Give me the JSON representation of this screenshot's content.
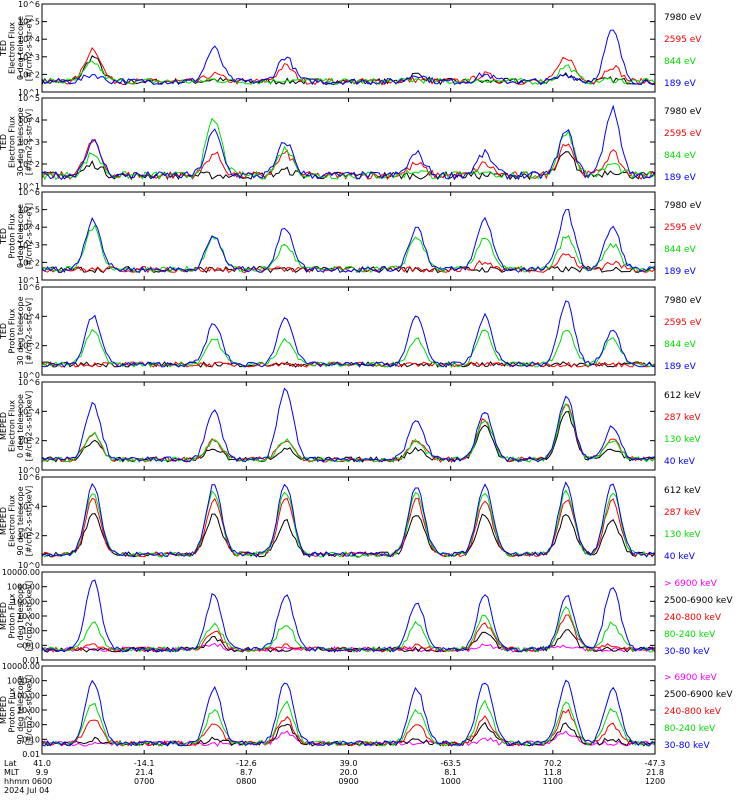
{
  "panels": [
    {
      "ylabel": [
        "TED",
        "Electron Flux",
        "0 deg telescope",
        "[#/cm2-s-str-eV]"
      ],
      "ticks": [
        "10^1",
        "10^2",
        "10^3",
        "10^4",
        "10^5",
        "10^6"
      ],
      "legend": [
        {
          "text": "7980 eV",
          "color": "#000000"
        },
        {
          "text": "2595 eV",
          "color": "#ff0000"
        },
        {
          "text": "844 eV",
          "color": "#00dd00"
        },
        {
          "text": "189 eV",
          "color": "#0000ff"
        }
      ],
      "yscale": "log"
    },
    {
      "ylabel": [
        "TED",
        "Electron Flux",
        "30 deg telescope",
        "[#/cm2-s-str-eV]"
      ],
      "ticks": [
        "10^1",
        "10^2",
        "10^3",
        "10^4",
        "10^5"
      ],
      "legend": [
        {
          "text": "7980 eV",
          "color": "#000000"
        },
        {
          "text": "2595 eV",
          "color": "#ff0000"
        },
        {
          "text": "844 eV",
          "color": "#00dd00"
        },
        {
          "text": "189 eV",
          "color": "#0000ff"
        }
      ],
      "yscale": "log"
    },
    {
      "ylabel": [
        "TED",
        "Proton Flux",
        "0 deg telescope",
        "[#/cm2-s-str-eV]"
      ],
      "ticks": [
        "10^1",
        "10^2",
        "10^3",
        "10^4",
        "10^5",
        "10^6"
      ],
      "legend": [
        {
          "text": "7980 eV",
          "color": "#000000"
        },
        {
          "text": "2595 eV",
          "color": "#ff0000"
        },
        {
          "text": "844 eV",
          "color": "#00dd00"
        },
        {
          "text": "189 eV",
          "color": "#0000ff"
        }
      ],
      "yscale": "log"
    },
    {
      "ylabel": [
        "TED",
        "Proton Flux",
        "30 deg telescope",
        "[#/cm2-s-str-eV]"
      ],
      "ticks": [
        "10^0",
        "10^2",
        "10^4",
        "10^6"
      ],
      "legend": [
        {
          "text": "7980 eV",
          "color": "#000000"
        },
        {
          "text": "2595 eV",
          "color": "#ff0000"
        },
        {
          "text": "844 eV",
          "color": "#00dd00"
        },
        {
          "text": "189 eV",
          "color": "#0000ff"
        }
      ],
      "yscale": "log"
    },
    {
      "ylabel": [
        "MEPED",
        "Electron Flux",
        "0 deg telescope",
        "[#/cm2-s-str-keV]"
      ],
      "ticks": [
        "10^0",
        "10^2",
        "10^4",
        "10^6"
      ],
      "legend": [
        {
          "text": "612 keV",
          "color": "#000000"
        },
        {
          "text": "287 keV",
          "color": "#ff0000"
        },
        {
          "text": "130 keV",
          "color": "#00dd00"
        },
        {
          "text": "40 keV",
          "color": "#0000ff"
        }
      ],
      "yscale": "log"
    },
    {
      "ylabel": [
        "MEPED",
        "Electron Flux",
        "90 deg telescope",
        "[#/cm2-s-str-keV]"
      ],
      "ticks": [
        "10^0",
        "10^2",
        "10^4",
        "10^6"
      ],
      "legend": [
        {
          "text": "612 keV",
          "color": "#000000"
        },
        {
          "text": "287 keV",
          "color": "#ff0000"
        },
        {
          "text": "130 keV",
          "color": "#00dd00"
        },
        {
          "text": "40 keV",
          "color": "#0000ff"
        }
      ],
      "yscale": "log"
    },
    {
      "ylabel": [
        "MEPED",
        "Proton Flux",
        "0 deg telescope",
        "[#/cm2-s-str-keV]"
      ],
      "ticks": [
        "0.01",
        "0.10",
        "1.00",
        "10.00",
        "100.00",
        "1000.00",
        "10000.00"
      ],
      "legend": [
        {
          "text": "> 6900 keV",
          "color": "#ff00ff"
        },
        {
          "text": "2500-6900 keV",
          "color": "#000000"
        },
        {
          "text": "240-800 keV",
          "color": "#ff0000"
        },
        {
          "text": "80-240 keV",
          "color": "#00dd00"
        },
        {
          "text": "30-80 keV",
          "color": "#0000ff"
        }
      ],
      "yscale": "log"
    },
    {
      "ylabel": [
        "MEPED",
        "Proton Flux",
        "90 deg telescope",
        "[#/cm2-s-str-keV]"
      ],
      "ticks": [
        "0.01",
        "0.10",
        "1.00",
        "10.00",
        "100.00",
        "1000.00",
        "10000.00"
      ],
      "legend": [
        {
          "text": "> 6900 keV",
          "color": "#ff00ff"
        },
        {
          "text": "2500-6900 keV",
          "color": "#000000"
        },
        {
          "text": "240-800 keV",
          "color": "#ff0000"
        },
        {
          "text": "80-240 keV",
          "color": "#00dd00"
        },
        {
          "text": "30-80 keV",
          "color": "#0000ff"
        }
      ],
      "yscale": "log"
    }
  ],
  "xaxis": {
    "row_labels": [
      "Lat",
      "MLT",
      "hhmm",
      "2024 Jul 04"
    ],
    "lat": [
      "41.0",
      "-14.1",
      "-12.6",
      "39.0",
      "-63.5",
      "70.2",
      "-47.3"
    ],
    "mlt": [
      "9.9",
      "21.4",
      "8.7",
      "20.0",
      "8.1",
      "11.8",
      "21.8"
    ],
    "hhmm": [
      "0600",
      "0700",
      "0800",
      "0900",
      "1000",
      "1100",
      "1200"
    ]
  },
  "chart_data": {
    "type": "line",
    "title": "",
    "x": [
      "0600",
      "0700",
      "0800",
      "0900",
      "1000",
      "1100",
      "1200"
    ],
    "xlabel": "hhmm",
    "date": "2024 Jul 04",
    "passes_hhmm": [
      "0630",
      "0741",
      "0823",
      "0940",
      "1020",
      "1108",
      "1135"
    ],
    "grid": false,
    "legend_position": "right",
    "panels": [
      {
        "name": "TED Electron Flux 0 deg telescope",
        "ylim": [
          "10^1",
          "10^6"
        ],
        "series": [
          {
            "name": "7980 eV",
            "peaks": [
              1000,
              50,
              30,
              100,
              20,
              100,
              50
            ]
          },
          {
            "name": "2595 eV",
            "peaks": [
              3000,
              100,
              300,
              50,
              100,
              1000,
              300
            ]
          },
          {
            "name": "844 eV",
            "peaks": [
              500,
              50,
              50,
              50,
              50,
              300,
              50
            ]
          },
          {
            "name": "189 eV",
            "peaks": [
              100,
              3000,
              1000,
              100,
              100,
              100,
              30000
            ]
          }
        ]
      },
      {
        "name": "TED Electron Flux 30 deg telescope",
        "ylim": [
          "10^1",
          "10^5"
        ],
        "series": [
          {
            "name": "7980 eV",
            "peaks": [
              100,
              20,
              50,
              20,
              10,
              300,
              50
            ]
          },
          {
            "name": "2595 eV",
            "peaks": [
              1000,
              300,
              300,
              100,
              100,
              1000,
              300
            ]
          },
          {
            "name": "844 eV",
            "peaks": [
              300,
              10000,
              500,
              50,
              50,
              3000,
              100
            ]
          },
          {
            "name": "189 eV",
            "peaks": [
              1000,
              3000,
              1000,
              300,
              300,
              3000,
              30000
            ]
          }
        ]
      },
      {
        "name": "TED Proton Flux 0 deg telescope",
        "ylim": [
          "10^1",
          "10^6"
        ],
        "series": [
          {
            "name": "7980 eV",
            "peaks": [
              30,
              30,
              30,
              30,
              30,
              30,
              30
            ]
          },
          {
            "name": "2595 eV",
            "peaks": [
              30,
              30,
              30,
              30,
              100,
              300,
              100
            ]
          },
          {
            "name": "844 eV",
            "peaks": [
              10000,
              3000,
              1000,
              3000,
              3000,
              3000,
              1000
            ]
          },
          {
            "name": "189 eV",
            "peaks": [
              30000,
              3000,
              10000,
              10000,
              30000,
              100000,
              10000
            ]
          }
        ]
      },
      {
        "name": "TED Proton Flux 30 deg telescope",
        "ylim": [
          "10^0",
          "10^6"
        ],
        "series": [
          {
            "name": "7980 eV",
            "peaks": [
              1,
              1,
              1,
              1,
              1,
              1,
              1
            ]
          },
          {
            "name": "2595 eV",
            "peaks": [
              3,
              3,
              3,
              3,
              3,
              3,
              3
            ]
          },
          {
            "name": "844 eV",
            "peaks": [
              1000,
              300,
              300,
              300,
              1000,
              1000,
              300
            ]
          },
          {
            "name": "189 eV",
            "peaks": [
              10000,
              3000,
              10000,
              10000,
              10000,
              100000,
              1000
            ]
          }
        ]
      },
      {
        "name": "MEPED Electron Flux 0 deg telescope",
        "ylim": [
          "10^0",
          "10^6"
        ],
        "series": [
          {
            "name": "612 keV",
            "peaks": [
              100,
              30,
              30,
              30,
              1000,
              10000,
              30
            ]
          },
          {
            "name": "287 keV",
            "peaks": [
              300,
              100,
              100,
              100,
              3000,
              30000,
              100
            ]
          },
          {
            "name": "130 keV",
            "peaks": [
              300,
              100,
              100,
              100,
              3000,
              30000,
              100
            ]
          },
          {
            "name": "40 keV",
            "peaks": [
              30000,
              10000,
              300000,
              3000,
              10000,
              100000,
              1000
            ]
          }
        ]
      },
      {
        "name": "MEPED Electron Flux 90 deg telescope",
        "ylim": [
          "10^0",
          "10^6"
        ],
        "series": [
          {
            "name": "612 keV",
            "peaks": [
              3000,
              3000,
              1000,
              3000,
              3000,
              3000,
              1000
            ]
          },
          {
            "name": "287 keV",
            "peaks": [
              30000,
              30000,
              30000,
              30000,
              30000,
              30000,
              30000
            ]
          },
          {
            "name": "130 keV",
            "peaks": [
              100000,
              100000,
              100000,
              100000,
              100000,
              100000,
              100000
            ]
          },
          {
            "name": "40 keV",
            "peaks": [
              300000,
              300000,
              300000,
              300000,
              300000,
              300000,
              300000
            ]
          }
        ]
      },
      {
        "name": "MEPED Proton Flux 0 deg telescope",
        "ylim": [
          0.01,
          10000
        ],
        "series": [
          {
            "name": "> 6900 keV",
            "peaks": [
              0.01,
              0.1,
              0.01,
              0.01,
              0.1,
              0.1,
              0.01
            ]
          },
          {
            "name": "2500-6900 keV",
            "peaks": [
              0.01,
              0.3,
              0.01,
              0.01,
              1,
              1,
              0.01
            ]
          },
          {
            "name": "240-800 keV",
            "peaks": [
              0.1,
              1,
              0.1,
              0.1,
              3,
              10,
              0.1
            ]
          },
          {
            "name": "80-240 keV",
            "peaks": [
              3,
              3,
              3,
              3,
              10,
              30,
              3
            ]
          },
          {
            "name": "30-80 keV",
            "peaks": [
              3000,
              300,
              300,
              100,
              300,
              300,
              1000
            ]
          }
        ]
      },
      {
        "name": "MEPED Proton Flux 90 deg telescope",
        "ylim": [
          0.01,
          10000
        ],
        "series": [
          {
            "name": "> 6900 keV",
            "peaks": [
              0.01,
              0.01,
              0.3,
              0.01,
              0.1,
              0.3,
              0.01
            ]
          },
          {
            "name": "2500-6900 keV",
            "peaks": [
              0.1,
              0.1,
              1,
              0.1,
              1,
              1,
              0.1
            ]
          },
          {
            "name": "240-800 keV",
            "peaks": [
              3,
              1,
              3,
              1,
              3,
              10,
              1
            ]
          },
          {
            "name": "80-240 keV",
            "peaks": [
              30,
              10,
              30,
              10,
              30,
              30,
              10
            ]
          },
          {
            "name": "30-80 keV",
            "peaks": [
              1000,
              300,
              1000,
              300,
              1000,
              1000,
              300
            ]
          }
        ]
      }
    ]
  }
}
